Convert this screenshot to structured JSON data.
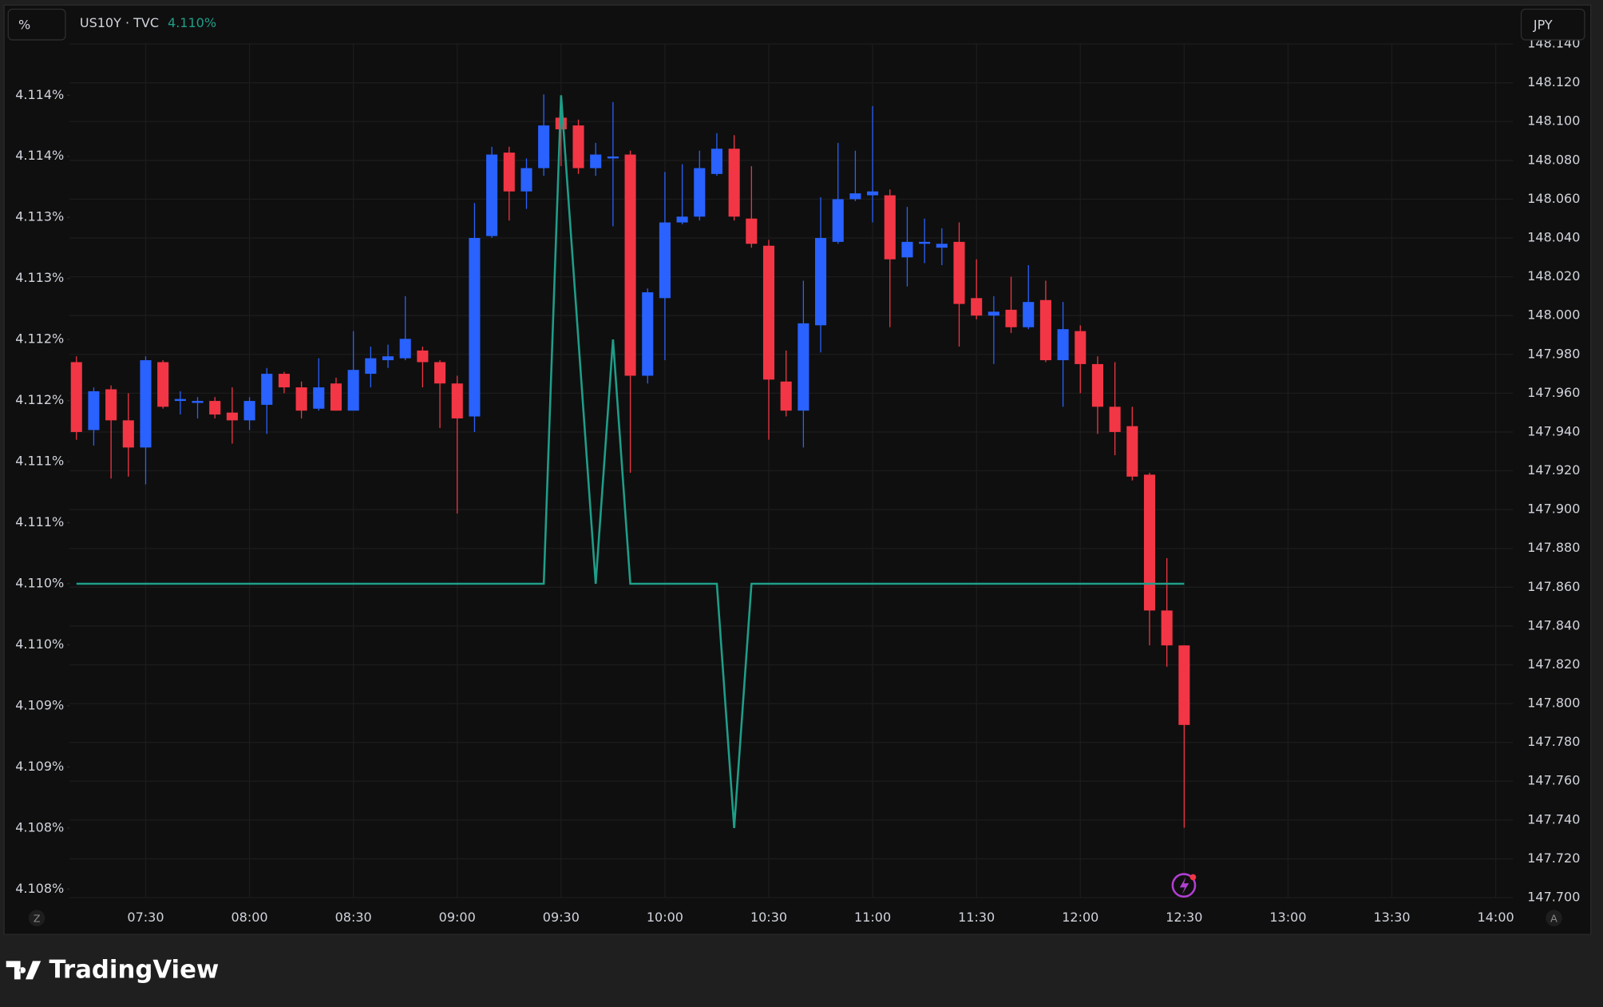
{
  "toolbar": {
    "left_scale": "%",
    "right_scale": "JPY",
    "zoom": "Z",
    "auto": "A"
  },
  "footer": {
    "brand": "TradingView"
  },
  "chart_data": {
    "type": "candlestick",
    "up_color": "#2962ff",
    "down_color": "#f23645",
    "grid": true,
    "x": [
      "07:10",
      "07:15",
      "07:20",
      "07:25",
      "07:30",
      "07:35",
      "07:40",
      "07:45",
      "07:50",
      "07:55",
      "08:00",
      "08:05",
      "08:10",
      "08:15",
      "08:20",
      "08:25",
      "08:30",
      "08:35",
      "08:40",
      "08:45",
      "08:50",
      "08:55",
      "09:00",
      "09:05",
      "09:10",
      "09:15",
      "09:20",
      "09:25",
      "09:30",
      "09:35",
      "09:40",
      "09:45",
      "09:50",
      "09:55",
      "10:00",
      "10:05",
      "10:10",
      "10:15",
      "10:20",
      "10:25",
      "10:30",
      "10:35",
      "10:40",
      "10:45",
      "10:50",
      "10:55",
      "11:00",
      "11:05",
      "11:10",
      "11:15",
      "11:20",
      "11:25",
      "11:30",
      "11:35",
      "11:40",
      "11:45",
      "11:50",
      "11:55",
      "12:00",
      "12:05",
      "12:10",
      "12:15",
      "12:20",
      "12:25",
      "12:30"
    ],
    "open": [
      147.976,
      147.941,
      147.962,
      147.946,
      147.932,
      147.976,
      147.956,
      147.955,
      147.956,
      147.95,
      147.946,
      147.954,
      147.97,
      147.963,
      147.952,
      147.965,
      147.951,
      147.97,
      147.977,
      147.978,
      147.982,
      147.976,
      147.965,
      147.948,
      148.041,
      148.084,
      148.064,
      148.076,
      148.102,
      148.098,
      148.076,
      148.081,
      148.083,
      147.969,
      148.009,
      148.048,
      148.051,
      148.073,
      148.086,
      148.05,
      148.036,
      147.966,
      147.951,
      147.995,
      148.038,
      148.06,
      148.062,
      148.062,
      148.03,
      148.037,
      148.035,
      148.038,
      148.009,
      148.0,
      148.003,
      147.994,
      148.008,
      147.977,
      147.992,
      147.975,
      147.953,
      147.943,
      147.918,
      147.848,
      147.83
    ],
    "high": [
      147.979,
      147.963,
      147.964,
      147.96,
      147.979,
      147.977,
      147.961,
      147.958,
      147.958,
      147.963,
      147.958,
      147.973,
      147.971,
      147.966,
      147.978,
      147.968,
      147.992,
      147.984,
      147.985,
      148.01,
      147.984,
      147.977,
      147.969,
      148.058,
      148.087,
      148.087,
      148.081,
      148.114,
      148.105,
      148.101,
      148.089,
      148.11,
      148.085,
      148.014,
      148.074,
      148.078,
      148.085,
      148.094,
      148.093,
      148.077,
      148.039,
      147.982,
      148.018,
      148.061,
      148.089,
      148.085,
      148.108,
      148.065,
      148.056,
      148.05,
      148.045,
      148.048,
      148.029,
      148.01,
      148.02,
      148.026,
      148.018,
      148.007,
      147.995,
      147.979,
      147.976,
      147.953,
      147.919,
      147.875,
      147.83
    ],
    "low": [
      147.936,
      147.933,
      147.916,
      147.917,
      147.913,
      147.952,
      147.949,
      147.947,
      147.947,
      147.934,
      147.941,
      147.939,
      147.96,
      147.947,
      147.951,
      147.951,
      147.951,
      147.963,
      147.973,
      147.977,
      147.963,
      147.942,
      147.898,
      147.94,
      148.04,
      148.049,
      148.055,
      148.072,
      148.077,
      148.073,
      148.072,
      148.046,
      147.919,
      147.965,
      147.977,
      148.047,
      148.049,
      148.072,
      148.049,
      148.035,
      147.936,
      147.948,
      147.932,
      147.981,
      148.037,
      148.059,
      148.048,
      147.994,
      148.015,
      148.027,
      148.026,
      147.984,
      147.998,
      147.975,
      147.991,
      147.993,
      147.976,
      147.953,
      147.96,
      147.939,
      147.928,
      147.915,
      147.83,
      147.819,
      147.736
    ],
    "close": [
      147.94,
      147.961,
      147.946,
      147.932,
      147.977,
      147.953,
      147.957,
      147.956,
      147.949,
      147.946,
      147.956,
      147.97,
      147.963,
      147.951,
      147.963,
      147.951,
      147.972,
      147.978,
      147.979,
      147.988,
      147.976,
      147.965,
      147.947,
      148.04,
      148.083,
      148.064,
      148.076,
      148.098,
      148.096,
      148.076,
      148.083,
      148.082,
      147.969,
      148.012,
      148.048,
      148.051,
      148.076,
      148.086,
      148.051,
      148.037,
      147.967,
      147.951,
      147.996,
      148.04,
      148.06,
      148.063,
      148.064,
      148.029,
      148.038,
      148.038,
      148.037,
      148.006,
      148.0,
      148.002,
      147.994,
      148.007,
      147.977,
      147.993,
      147.975,
      147.953,
      147.94,
      147.917,
      147.848,
      147.83,
      147.789
    ],
    "series": [
      {
        "name": "US10Y · TVC",
        "type": "line",
        "axis": "y2",
        "color": "#1f9e88",
        "last": {
          "value": 4.11,
          "label": "4.110%"
        },
        "values": [
          4.11,
          4.11,
          4.11,
          4.11,
          4.11,
          4.11,
          4.11,
          4.11,
          4.11,
          4.11,
          4.11,
          4.11,
          4.11,
          4.11,
          4.11,
          4.11,
          4.11,
          4.11,
          4.11,
          4.11,
          4.11,
          4.11,
          4.11,
          4.11,
          4.11,
          4.11,
          4.11,
          4.11,
          4.114,
          4.112,
          4.11,
          4.112,
          4.11,
          4.11,
          4.11,
          4.11,
          4.11,
          4.11,
          4.108,
          4.11,
          4.11,
          4.11,
          4.11,
          4.11,
          4.11,
          4.11,
          4.11,
          4.11,
          4.11,
          4.11,
          4.11,
          4.11,
          4.11,
          4.11,
          4.11,
          4.11,
          4.11,
          4.11,
          4.11,
          4.11,
          4.11,
          4.11,
          4.11,
          4.11,
          4.11
        ]
      }
    ],
    "xlim": [
      "07:08",
      "14:05"
    ],
    "xticks": [
      "07:30",
      "08:00",
      "08:30",
      "09:00",
      "09:30",
      "10:00",
      "10:30",
      "11:00",
      "11:30",
      "12:00",
      "12:30",
      "13:00",
      "13:30",
      "14:00"
    ],
    "ylim": [
      147.7,
      148.14
    ],
    "yticks": [
      {
        "value": 147.7,
        "label": "147.700"
      },
      {
        "value": 147.72,
        "label": "147.720"
      },
      {
        "value": 147.74,
        "label": "147.740"
      },
      {
        "value": 147.76,
        "label": "147.760"
      },
      {
        "value": 147.78,
        "label": "147.780"
      },
      {
        "value": 147.8,
        "label": "147.800"
      },
      {
        "value": 147.82,
        "label": "147.820"
      },
      {
        "value": 147.84,
        "label": "147.840"
      },
      {
        "value": 147.86,
        "label": "147.860"
      },
      {
        "value": 147.88,
        "label": "147.880"
      },
      {
        "value": 147.9,
        "label": "147.900"
      },
      {
        "value": 147.92,
        "label": "147.920"
      },
      {
        "value": 147.94,
        "label": "147.940"
      },
      {
        "value": 147.96,
        "label": "147.960"
      },
      {
        "value": 147.98,
        "label": "147.980"
      },
      {
        "value": 148.0,
        "label": "148.000"
      },
      {
        "value": 148.02,
        "label": "148.020"
      },
      {
        "value": 148.04,
        "label": "148.040"
      },
      {
        "value": 148.06,
        "label": "148.060"
      },
      {
        "value": 148.08,
        "label": "148.080"
      },
      {
        "value": 148.1,
        "label": "148.100"
      },
      {
        "value": 148.12,
        "label": "148.120"
      },
      {
        "value": 148.14,
        "label": "148.140"
      }
    ],
    "y2_position": "left",
    "y2lim": [
      4.10743,
      4.11442
    ],
    "y2ticks": [
      {
        "value": 4.1075,
        "label": "4.108%"
      },
      {
        "value": 4.108,
        "label": "4.108%"
      },
      {
        "value": 4.1085,
        "label": "4.109%"
      },
      {
        "value": 4.109,
        "label": "4.109%"
      },
      {
        "value": 4.1095,
        "label": "4.110%"
      },
      {
        "value": 4.11,
        "label": "4.110%"
      },
      {
        "value": 4.1105,
        "label": "4.111%"
      },
      {
        "value": 4.111,
        "label": "4.111%"
      },
      {
        "value": 4.1115,
        "label": "4.112%"
      },
      {
        "value": 4.112,
        "label": "4.112%"
      },
      {
        "value": 4.1125,
        "label": "4.113%"
      },
      {
        "value": 4.113,
        "label": "4.113%"
      },
      {
        "value": 4.1135,
        "label": "4.114%"
      },
      {
        "value": 4.114,
        "label": "4.114%"
      }
    ]
  }
}
